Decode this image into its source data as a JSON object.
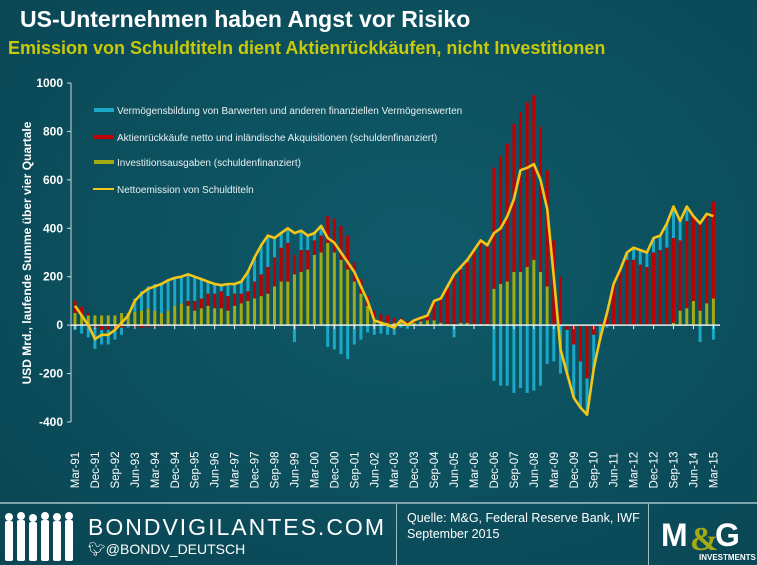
{
  "header": {
    "title": "US-Unternehmen haben Angst vor Risiko",
    "subtitle": "Emission von Schuldtiteln dient Aktienrückkäufen, nicht Investitionen"
  },
  "chart_data": {
    "type": "bar",
    "stacked": true,
    "ylabel": "USD Mrd., laufende Summe über vier Quartale",
    "ylim": [
      -400,
      1000
    ],
    "yticks": [
      "1000",
      "800",
      "600",
      "400",
      "200",
      "0",
      "-200",
      "-400"
    ],
    "ytick_values": [
      1000,
      800,
      600,
      400,
      200,
      0,
      -200,
      -400
    ],
    "legend_placement": "top-left",
    "frequency": "quarterly",
    "first_quarter": "Mar-91",
    "xtick_labels": [
      "Mar-91",
      "Dec-91",
      "Sep-92",
      "Jun-93",
      "Mar-94",
      "Dec-94",
      "Sep-95",
      "Jun-96",
      "Mar-97",
      "Dec-97",
      "Sep-98",
      "Jun-99",
      "Mar-00",
      "Dec-00",
      "Sep-01",
      "Jun-02",
      "Mar-03",
      "Dec-03",
      "Sep-04",
      "Jun-05",
      "Mar-06",
      "Dec-06",
      "Sep-07",
      "Jun-08",
      "Mar-09",
      "Dec-09",
      "Sep-10",
      "Jun-11",
      "Mar-12",
      "Dec-12",
      "Sep-13",
      "Jun-14",
      "Mar-15"
    ],
    "series": [
      {
        "name": "Investitionsausgaben (schuldenfinanziert)",
        "kind": "bar",
        "color": "#a3aa12",
        "values": [
          50,
          45,
          40,
          40,
          40,
          40,
          40,
          50,
          50,
          55,
          60,
          70,
          60,
          50,
          60,
          80,
          90,
          80,
          60,
          70,
          80,
          70,
          70,
          60,
          80,
          90,
          100,
          110,
          120,
          130,
          160,
          180,
          180,
          210,
          220,
          230,
          290,
          300,
          340,
          300,
          270,
          230,
          180,
          130,
          80,
          20,
          15,
          10,
          10,
          10,
          5,
          10,
          15,
          20,
          20,
          10,
          5,
          5,
          10,
          10,
          5,
          5,
          5,
          150,
          170,
          180,
          220,
          220,
          240,
          270,
          220,
          160,
          0,
          0,
          0,
          0,
          0,
          0,
          0,
          0,
          0,
          0,
          0,
          0,
          0,
          0,
          0,
          0,
          0,
          0,
          10,
          60,
          70,
          100,
          60,
          90,
          110
        ]
      },
      {
        "name": "Aktienrückkäufe netto und inländische Akquisitionen (schuldenfinanziert)",
        "kind": "bar",
        "color": "#c00000",
        "values": [
          50,
          30,
          10,
          -10,
          -20,
          -20,
          -20,
          -10,
          -5,
          -10,
          -10,
          -10,
          -10,
          -5,
          0,
          0,
          0,
          20,
          40,
          40,
          50,
          60,
          70,
          60,
          50,
          40,
          40,
          70,
          90,
          110,
          120,
          140,
          160,
          80,
          90,
          80,
          60,
          70,
          110,
          140,
          140,
          140,
          80,
          60,
          40,
          40,
          30,
          30,
          20,
          20,
          10,
          10,
          10,
          20,
          80,
          100,
          150,
          190,
          220,
          250,
          300,
          340,
          320,
          500,
          530,
          570,
          610,
          660,
          680,
          680,
          600,
          480,
          350,
          200,
          -20,
          -80,
          -150,
          -220,
          -40,
          10,
          60,
          170,
          230,
          270,
          270,
          250,
          240,
          300,
          310,
          320,
          350,
          290,
          360,
          350,
          360,
          370,
          400
        ]
      },
      {
        "name": "Vermögensbildung von Barwerten und anderen finanziellen Vermögenswerten",
        "kind": "bar",
        "color": "#1aa8c8",
        "values": [
          -20,
          -35,
          -50,
          -88,
          -60,
          -60,
          -40,
          -30,
          -5,
          55,
          80,
          90,
          110,
          125,
          125,
          115,
          110,
          110,
          100,
          80,
          50,
          40,
          25,
          50,
          40,
          50,
          80,
          100,
          120,
          130,
          80,
          60,
          60,
          -70,
          80,
          60,
          30,
          40,
          -90,
          -100,
          -120,
          -140,
          -80,
          -60,
          -30,
          -40,
          -35,
          -40,
          -40,
          -10,
          -15,
          0,
          5,
          0,
          0,
          0,
          5,
          -50,
          10,
          10,
          5,
          5,
          5,
          -230,
          -250,
          -250,
          -280,
          -260,
          -280,
          -270,
          -250,
          -160,
          -150,
          -200,
          -180,
          -220,
          -190,
          -150,
          -140,
          -60,
          -10,
          0,
          0,
          30,
          50,
          60,
          60,
          60,
          60,
          100,
          130,
          80,
          60,
          0,
          -70,
          0,
          -60
        ]
      },
      {
        "name": "Nettoemission von Schuldtiteln",
        "kind": "line",
        "color": "#f5c518",
        "values": [
          80,
          40,
          0,
          -58,
          -40,
          -40,
          -20,
          10,
          40,
          100,
          130,
          150,
          160,
          170,
          185,
          195,
          200,
          210,
          200,
          190,
          180,
          170,
          165,
          170,
          170,
          180,
          220,
          280,
          330,
          370,
          360,
          380,
          400,
          380,
          390,
          370,
          380,
          410,
          360,
          340,
          300,
          260,
          220,
          160,
          100,
          20,
          10,
          0,
          -10,
          20,
          0,
          20,
          30,
          40,
          100,
          110,
          160,
          210,
          240,
          270,
          310,
          350,
          330,
          380,
          400,
          450,
          520,
          640,
          650,
          665,
          600,
          480,
          200,
          -100,
          -200,
          -300,
          -340,
          -370,
          -180,
          -50,
          50,
          170,
          230,
          300,
          320,
          310,
          300,
          360,
          370,
          420,
          490,
          430,
          490,
          450,
          420,
          460,
          450
        ]
      }
    ]
  },
  "footer": {
    "site": "BONDVIGILANTES.COM",
    "twitter": "@BONDV_DEUTSCH",
    "source_line1": "Quelle: M&G, Federal Reserve Bank, IWF",
    "source_line2": "September 2015",
    "logo_text": "M&G",
    "logo_sub": "INVESTMENTS"
  }
}
